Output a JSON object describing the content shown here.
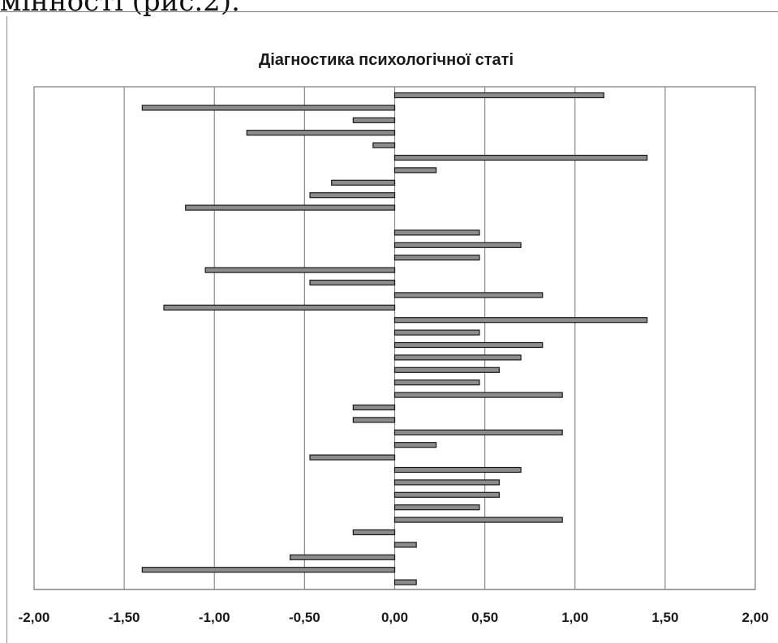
{
  "page": {
    "top_text": "мінності (рис.2)."
  },
  "colors": {
    "bar_fill": "#8c8c8c",
    "bar_stroke": "#1a1a1a",
    "gridline": "#8c8c8c",
    "plot_border": "#7a7a7a",
    "text": "#1a1a1a"
  },
  "chart_data": {
    "type": "bar",
    "orientation": "horizontal",
    "title": "Діагностика психологічної статі",
    "xlabel": "",
    "ylabel": "",
    "xlim": [
      -2.0,
      2.0
    ],
    "x_ticks": [
      -2.0,
      -1.5,
      -1.0,
      -0.5,
      0.0,
      0.5,
      1.0,
      1.5,
      2.0
    ],
    "x_tick_labels": [
      "-2,00",
      "-1,50",
      "-1,00",
      "-0,50",
      "0,00",
      "0,50",
      "1,00",
      "1,50",
      "2,00"
    ],
    "grid": true,
    "legend": "none",
    "values": [
      1.16,
      -1.4,
      -0.23,
      -0.82,
      -0.12,
      1.4,
      0.23,
      -0.35,
      -0.47,
      -1.16,
      0,
      0.47,
      0.7,
      0.47,
      -1.05,
      -0.47,
      0.82,
      -1.28,
      1.4,
      0.47,
      0.82,
      0.7,
      0.58,
      0.47,
      0.93,
      -0.23,
      -0.23,
      0.93,
      0.23,
      -0.47,
      0.7,
      0.58,
      0.58,
      0.47,
      0.93,
      -0.23,
      0.12,
      -0.58,
      -1.4,
      0.12
    ]
  }
}
